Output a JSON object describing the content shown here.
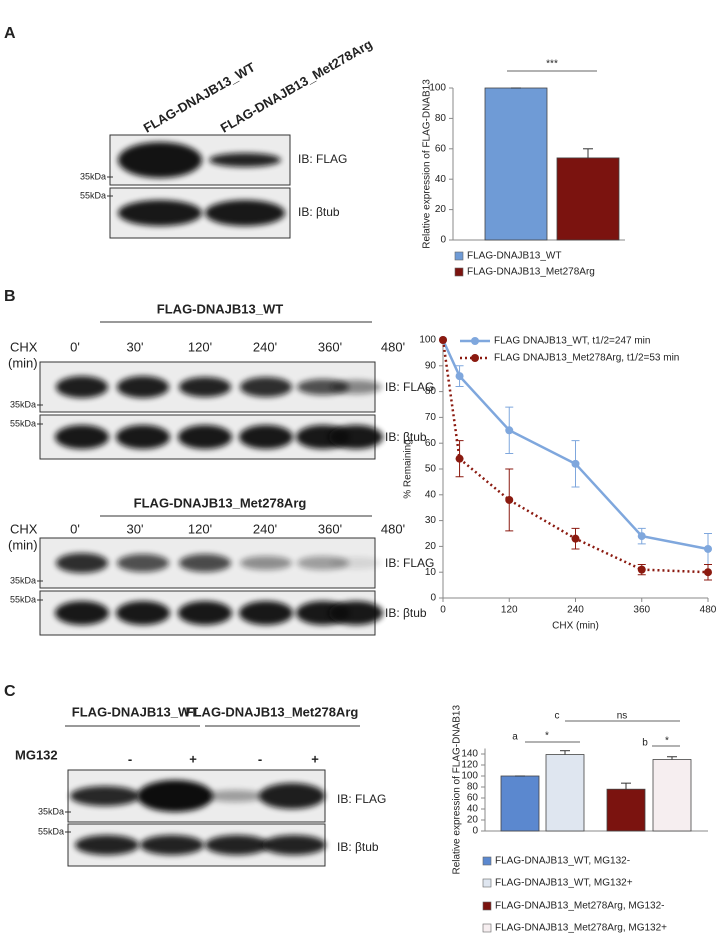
{
  "panels": [
    "A",
    "B",
    "C"
  ],
  "blot_common": {
    "ib": [
      "IB: FLAG",
      "IB: βtub"
    ],
    "markers": [
      "35kDa",
      "55kDa"
    ]
  },
  "blot_a": {
    "lanes": [
      "FLAG-DNAJB13_WT",
      "FLAG-DNAJB13_Met278Arg"
    ]
  },
  "blot_b": {
    "groups": [
      "FLAG-DNAJB13_WT",
      "FLAG-DNAJB13_Met278Arg"
    ],
    "condition": [
      "CHX",
      "(min)"
    ],
    "lanes": [
      "0'",
      "30'",
      "120'",
      "240'",
      "360'",
      "480'"
    ]
  },
  "blot_c": {
    "groups": [
      "FLAG-DNAJB13_WT",
      "FLAG-DNAJB13_Met278Arg"
    ],
    "treatment": "MG132",
    "lanes": [
      "-",
      "+",
      "-",
      "+"
    ]
  },
  "chart_data": [
    {
      "type": "bar",
      "ylabel": "Relative expression of FLAG-DNAB13",
      "ylim": [
        0,
        100
      ],
      "yticks": [
        0,
        20,
        40,
        60,
        80,
        100
      ],
      "series": [
        {
          "name": "FLAG-DNAJB13_WT",
          "color": "#6f9bd6",
          "values": [
            100
          ],
          "errors": [
            0
          ]
        },
        {
          "name": "FLAG-DNAJB13_Met278Arg",
          "color": "#7b130f",
          "values": [
            54
          ],
          "errors": [
            6
          ]
        }
      ],
      "annotations": [
        "***"
      ]
    },
    {
      "type": "line",
      "xlabel": "CHX (min)",
      "ylabel": "% Remaining",
      "x": [
        0,
        30,
        120,
        240,
        360,
        480
      ],
      "xlim": [
        0,
        480
      ],
      "xticks": [
        0,
        120,
        240,
        360,
        480
      ],
      "ylim": [
        0,
        100
      ],
      "yticks": [
        0,
        10,
        20,
        30,
        40,
        50,
        60,
        70,
        80,
        90,
        100
      ],
      "legend": "upper right",
      "series": [
        {
          "name": "FLAG DNAJB13_WT, t1/2=247 min",
          "color": "#7fa7dd",
          "style": "solid",
          "values": [
            100,
            86,
            65,
            52,
            24,
            19
          ],
          "errors": [
            0,
            4,
            9,
            9,
            3,
            6
          ]
        },
        {
          "name": "FLAG DNAJB13_Met278Arg, t1/2=53 min",
          "color": "#8b1a10",
          "style": "dotted",
          "values": [
            100,
            54,
            38,
            23,
            11,
            10
          ],
          "errors": [
            0,
            7,
            12,
            4,
            2,
            3
          ]
        }
      ]
    },
    {
      "type": "bar",
      "ylabel": "Relative expression of FLAG-DNAB13",
      "ylim": [
        0,
        150
      ],
      "yticks": [
        0,
        20,
        40,
        60,
        80,
        100,
        120,
        140
      ],
      "series": [
        {
          "name": "FLAG-DNAJB13_WT, MG132-",
          "color": "#5b88cf",
          "values": [
            100
          ],
          "errors": [
            0
          ]
        },
        {
          "name": "FLAG-DNAJB13_WT, MG132+",
          "color": "#dfe6f0",
          "values": [
            139
          ],
          "errors": [
            7
          ]
        },
        {
          "name": "FLAG-DNAJB13_Met278Arg, MG132-",
          "color": "#7b130f",
          "values": [
            76
          ],
          "errors": [
            11
          ]
        },
        {
          "name": "FLAG-DNAJB13_Met278Arg, MG132+",
          "color": "#f6eef0",
          "values": [
            130
          ],
          "errors": [
            5
          ]
        }
      ],
      "annotations": [
        "a",
        "*",
        "c",
        "ns",
        "b",
        "*"
      ]
    }
  ]
}
